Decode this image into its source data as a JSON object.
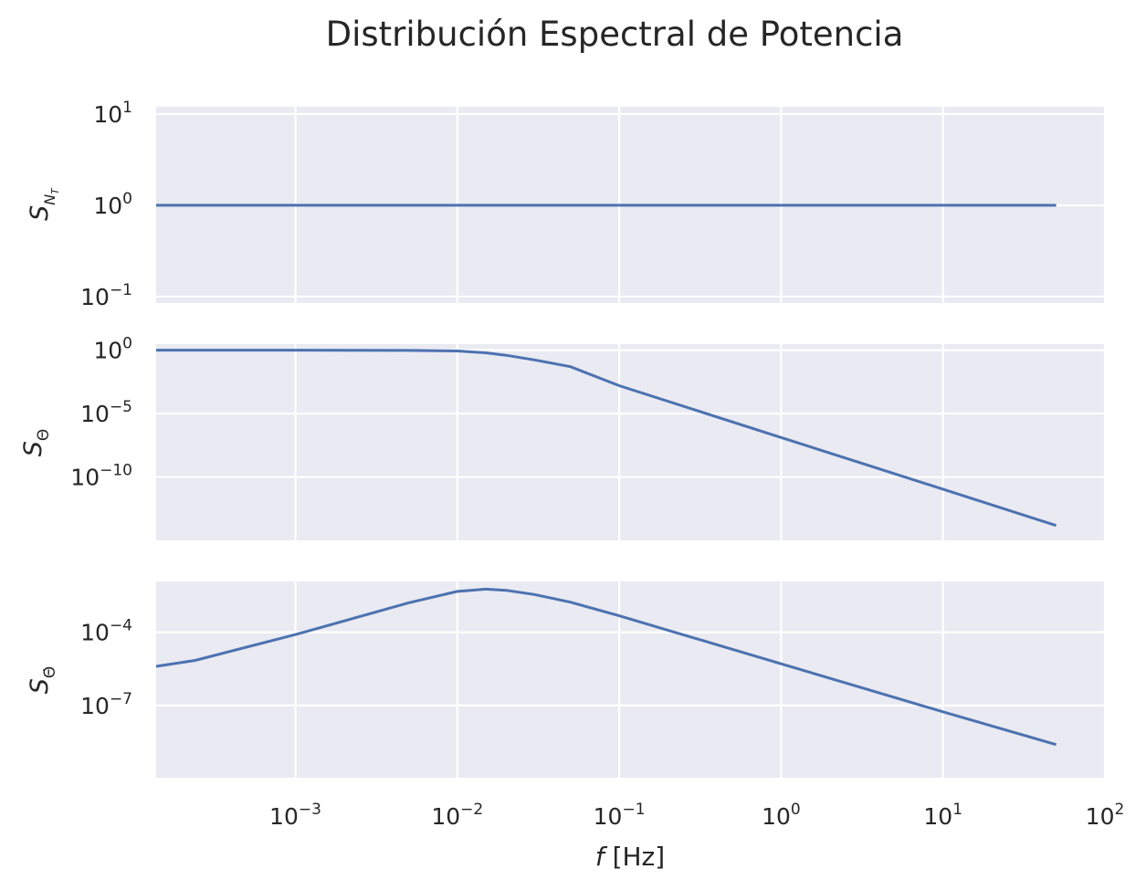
{
  "chart_data": {
    "type": "line",
    "title": "Distribución Espectral de Potencia",
    "xlabel": "f [Hz]",
    "xscale": "log",
    "xlim": [
      0.000138,
      100
    ],
    "x_ticks": [
      {
        "value": 0.001,
        "base": "10",
        "exp": "−3"
      },
      {
        "value": 0.01,
        "base": "10",
        "exp": "−2"
      },
      {
        "value": 0.1,
        "base": "10",
        "exp": "−1"
      },
      {
        "value": 1,
        "base": "10",
        "exp": "0"
      },
      {
        "value": 10,
        "base": "10",
        "exp": "1"
      },
      {
        "value": 100,
        "base": "10",
        "exp": "2"
      }
    ],
    "line_color": "#4c72b0",
    "background": "#eaeaf2",
    "grid": true,
    "subplots": [
      {
        "ylabel": "S_{N_T}",
        "yscale": "log",
        "ylim": [
          0.085,
          12
        ],
        "y_ticks": [
          {
            "value": 10,
            "base": "10",
            "exp": "1"
          },
          {
            "value": 1,
            "base": "10",
            "exp": "0"
          },
          {
            "value": 0.1,
            "base": "10",
            "exp": "−1"
          }
        ],
        "series": [
          {
            "x": [
              0.000138,
              0.001,
              0.01,
              0.1,
              1,
              10,
              50
            ],
            "y": [
              1,
              1,
              1,
              1,
              1,
              1,
              1
            ]
          }
        ]
      },
      {
        "ylabel": "S_Θ",
        "yscale": "log",
        "ylim": [
          1e-15,
          3
        ],
        "y_ticks": [
          {
            "value": 1,
            "base": "10",
            "exp": "0"
          },
          {
            "value": 1e-05,
            "base": "10",
            "exp": "−5"
          },
          {
            "value": 1e-10,
            "base": "10",
            "exp": "−10"
          }
        ],
        "series": [
          {
            "x": [
              0.000138,
              0.001,
              0.005,
              0.01,
              0.015,
              0.02,
              0.03,
              0.05,
              0.1,
              1,
              10,
              50
            ],
            "y": [
              1,
              1,
              0.96,
              0.87,
              0.62,
              0.4,
              0.17,
              0.05,
              0.0016,
              1.3e-07,
              1.1e-11,
              1.5e-14
            ]
          }
        ]
      },
      {
        "ylabel": "S_Θ̇",
        "yscale": "log",
        "ylim": [
          1.1e-10,
          0.012
        ],
        "y_ticks": [
          {
            "value": 0.0001,
            "base": "10",
            "exp": "−4"
          },
          {
            "value": 1e-07,
            "base": "10",
            "exp": "−7"
          }
        ],
        "series": [
          {
            "x": [
              0.000138,
              0.00024,
              0.001,
              0.005,
              0.01,
              0.015,
              0.02,
              0.03,
              0.05,
              0.1,
              1,
              10,
              50
            ],
            "y": [
              4e-06,
              7e-06,
              8e-05,
              0.0016,
              0.0047,
              0.0058,
              0.0052,
              0.0035,
              0.0017,
              0.00047,
              5.1e-06,
              5.5e-08,
              2.5e-09
            ]
          }
        ]
      }
    ]
  }
}
